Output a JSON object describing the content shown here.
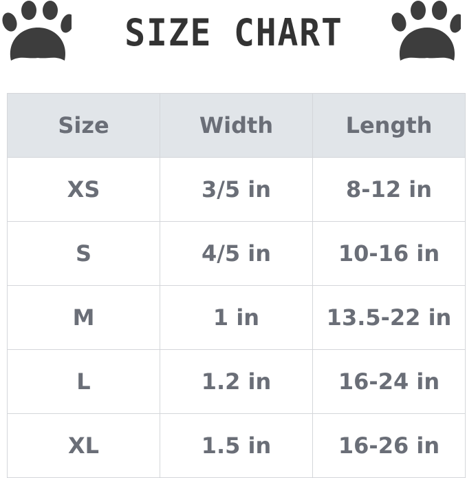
{
  "title": "SIZE CHART",
  "icons": {
    "left": "paw-print-icon",
    "right": "paw-print-icon"
  },
  "colors": {
    "header_bg": "#e1e5e9",
    "text": "#6a6e77",
    "paw": "#3d3d3d"
  },
  "table": {
    "headers": [
      "Size",
      "Width",
      "Length"
    ],
    "rows": [
      [
        "XS",
        "3/5 in",
        "8-12 in"
      ],
      [
        "S",
        "4/5 in",
        "10-16 in"
      ],
      [
        "M",
        "1 in",
        "13.5-22 in"
      ],
      [
        "L",
        "1.2 in",
        "16-24 in"
      ],
      [
        "XL",
        "1.5 in",
        "16-26 in"
      ]
    ]
  }
}
